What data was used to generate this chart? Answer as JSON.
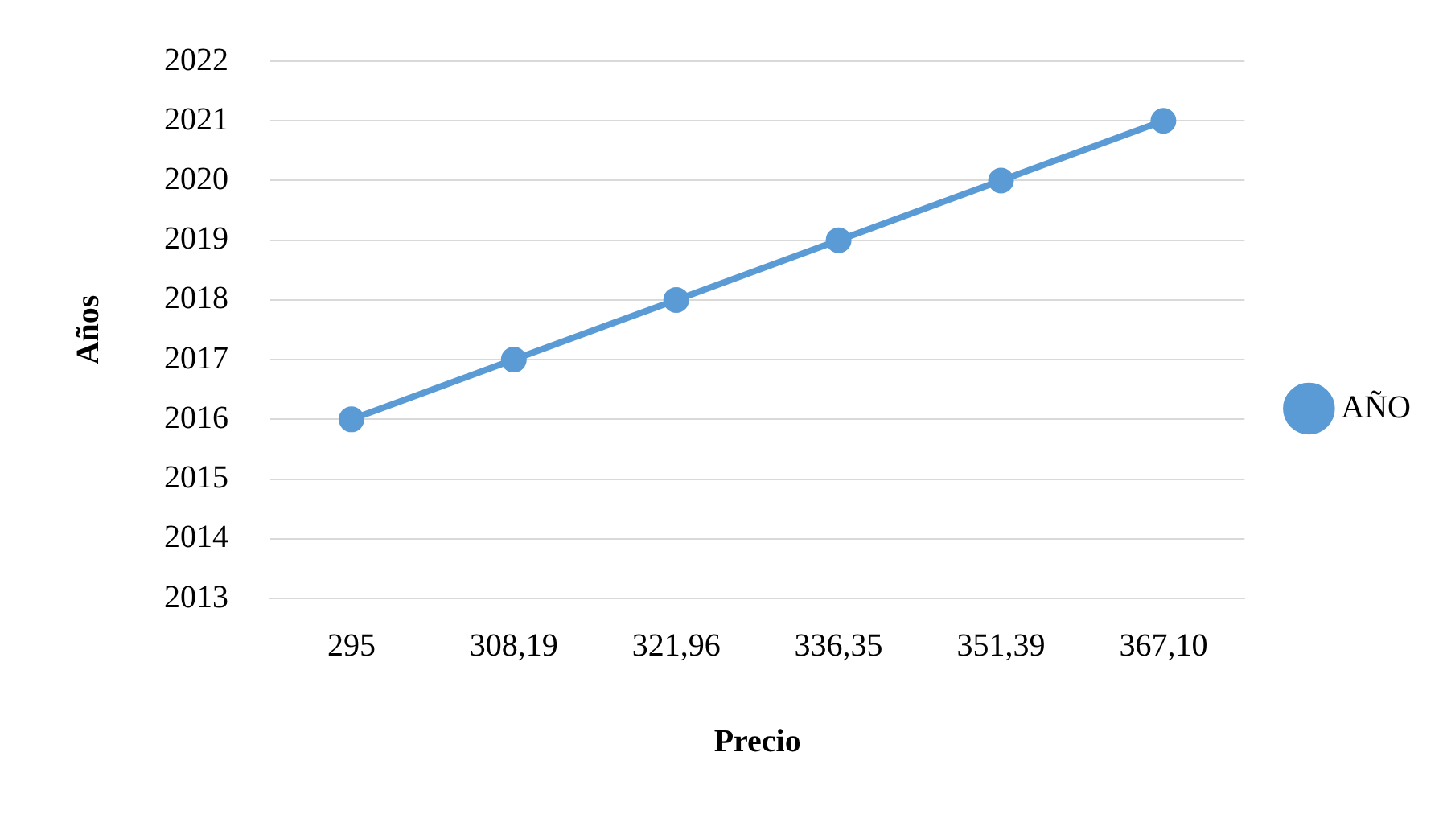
{
  "chart_data": {
    "type": "line",
    "xlabel": "Precio",
    "ylabel": "Años",
    "categories": [
      "295",
      "308,19",
      "321,96",
      "336,35",
      "351,39",
      "367,10"
    ],
    "series": [
      {
        "name": "AÑO",
        "color": "#5b9bd5",
        "values": [
          2016,
          2017,
          2018,
          2019,
          2020,
          2021
        ]
      }
    ],
    "ylim": [
      2013,
      2022
    ],
    "yticks": [
      2013,
      2014,
      2015,
      2016,
      2017,
      2018,
      2019,
      2020,
      2021,
      2022
    ],
    "grid": "y",
    "legend": "right",
    "marker": "circle",
    "line_style": "solid"
  }
}
